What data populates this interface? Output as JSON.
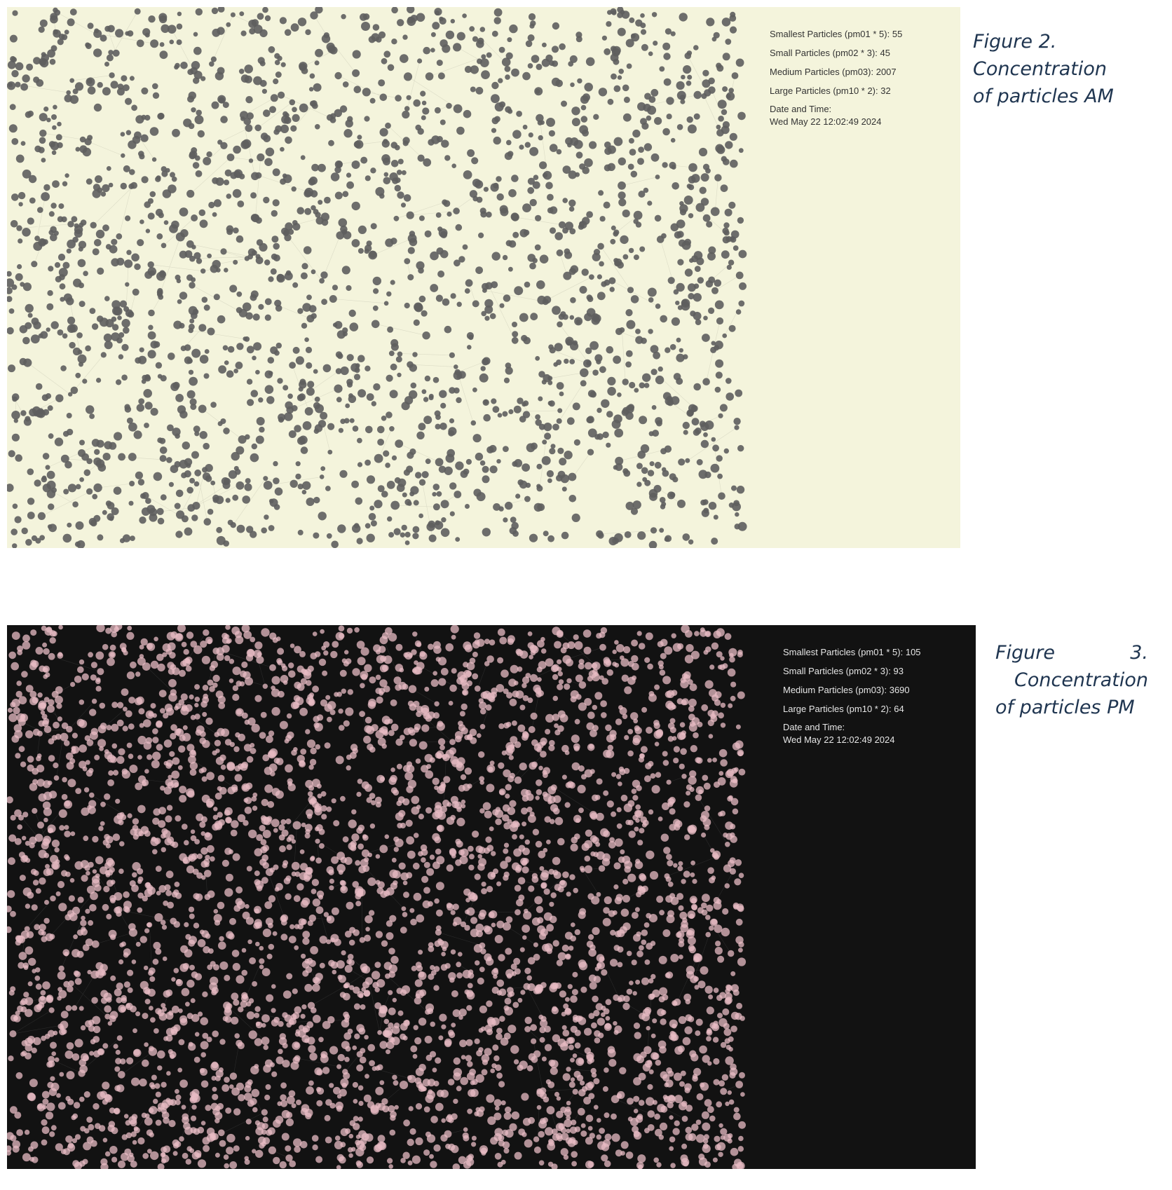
{
  "figures": [
    {
      "id": "am",
      "readout": {
        "smallest": "Smallest Particles (pm01 * 5): 55",
        "small": "Small Particles (pm02 * 3): 45",
        "medium": "Medium Particles (pm03): 2007",
        "large": "Large Particles (pm10 * 2): 32",
        "datetime_label": "Date and Time:",
        "datetime_value": "Wed May 22 12:02:49 2024"
      },
      "caption": {
        "line1": "Figure 2.",
        "line2": "Concentration",
        "line3": "of particles AM"
      },
      "colors": {
        "background": "#f4f4dc",
        "particle": "#5e5e5e",
        "link": "#8a8a7a"
      }
    },
    {
      "id": "pm",
      "readout": {
        "smallest": "Smallest Particles (pm01 * 5): 105",
        "small": "Small Particles (pm02 * 3): 93",
        "medium": "Medium Particles (pm03): 3690",
        "large": "Large Particles (pm10 * 2): 64",
        "datetime_label": "Date and Time:",
        "datetime_value": "Wed May 22 12:02:49 2024"
      },
      "caption": {
        "line1": "Figure 3.",
        "line2": "Concentration",
        "line3": "of particles PM"
      },
      "colors": {
        "background": "#121212",
        "particle": "#e8bcc4",
        "link": "#9a9a9a"
      }
    }
  ]
}
